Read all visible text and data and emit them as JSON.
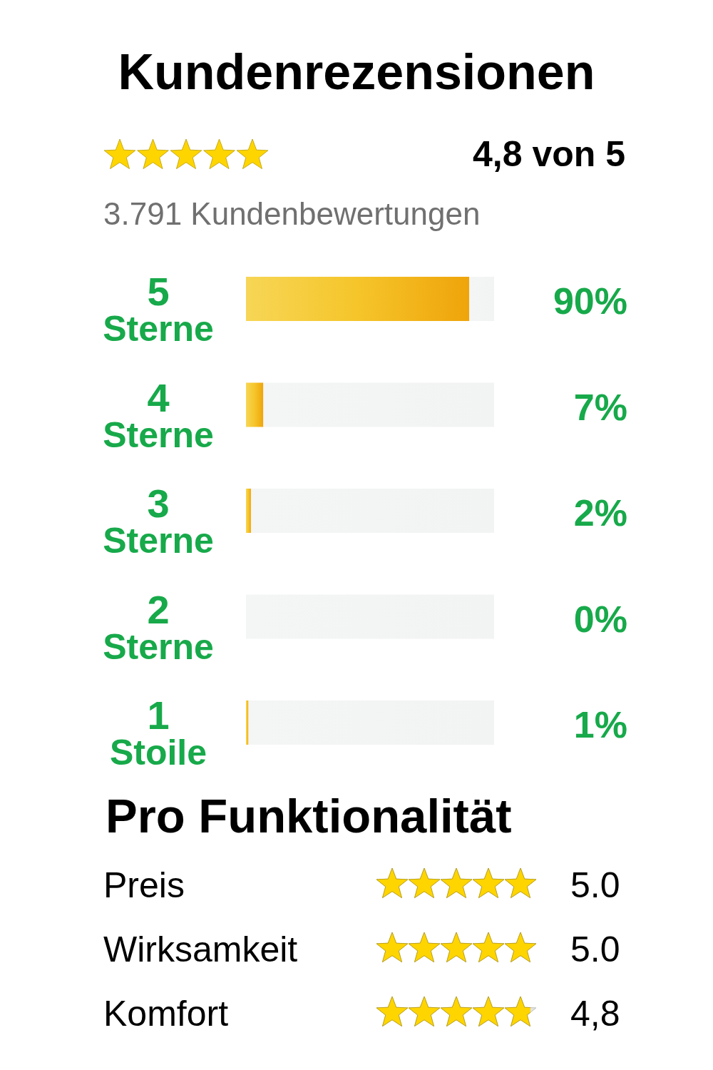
{
  "chart_data": [
    {
      "type": "bar",
      "orientation": "horizontal",
      "stacked": true,
      "title": "Kundenrezensionen",
      "annotations": [
        "4,8 von 5",
        "3.791 Kundenbewertungen"
      ],
      "categories": [
        "5 Sterne",
        "4 Sterne",
        "3 Sterne",
        "2 Sterne",
        "1 Stoile"
      ],
      "series": [
        {
          "color": "#f5c52a",
          "values": [
            90,
            7,
            2,
            0,
            1
          ],
          "value_labels": [
            "90%",
            "7%",
            "2%",
            "0%",
            "1%"
          ]
        },
        {
          "color": "#f3f4f4",
          "values": [
            10,
            93,
            98,
            100,
            99
          ]
        }
      ],
      "xlim": [
        0,
        100
      ],
      "tick_labels": "y"
    },
    {
      "type": "other",
      "title": "Pro Funktionalität",
      "categories": [
        "Preis",
        "Wirksamkeit",
        "Komfort"
      ],
      "values": [
        5.0,
        5.0,
        4.8
      ],
      "value_labels": [
        "5.0",
        "5.0",
        "4,8"
      ],
      "color": "#ffd500"
    }
  ]
}
